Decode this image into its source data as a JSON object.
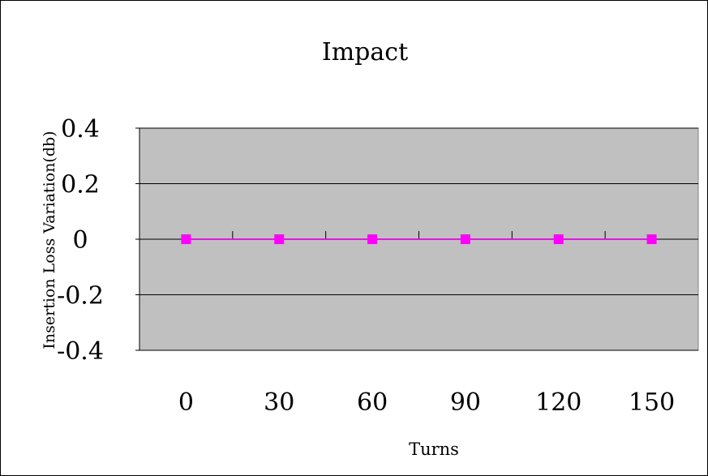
{
  "chart_data": {
    "type": "line",
    "title": "Impact",
    "xlabel": "Turns",
    "ylabel": "Insertion Loss Variation(db)",
    "categories": [
      "0",
      "30",
      "60",
      "90",
      "120",
      "150"
    ],
    "series": [
      {
        "values": [
          0,
          0,
          0,
          0,
          0,
          0
        ],
        "color": "#ff00ff",
        "marker": "square"
      }
    ],
    "ylim": [
      -0.4,
      0.4
    ],
    "yticks": [
      0.4,
      0.2,
      0,
      -0.2,
      -0.4
    ],
    "ytick_labels": [
      "0.4",
      "0.2",
      "0",
      "-0.2",
      "-0.4"
    ],
    "grid": true,
    "plot_background": "#c0c0c0",
    "legend": "none"
  }
}
